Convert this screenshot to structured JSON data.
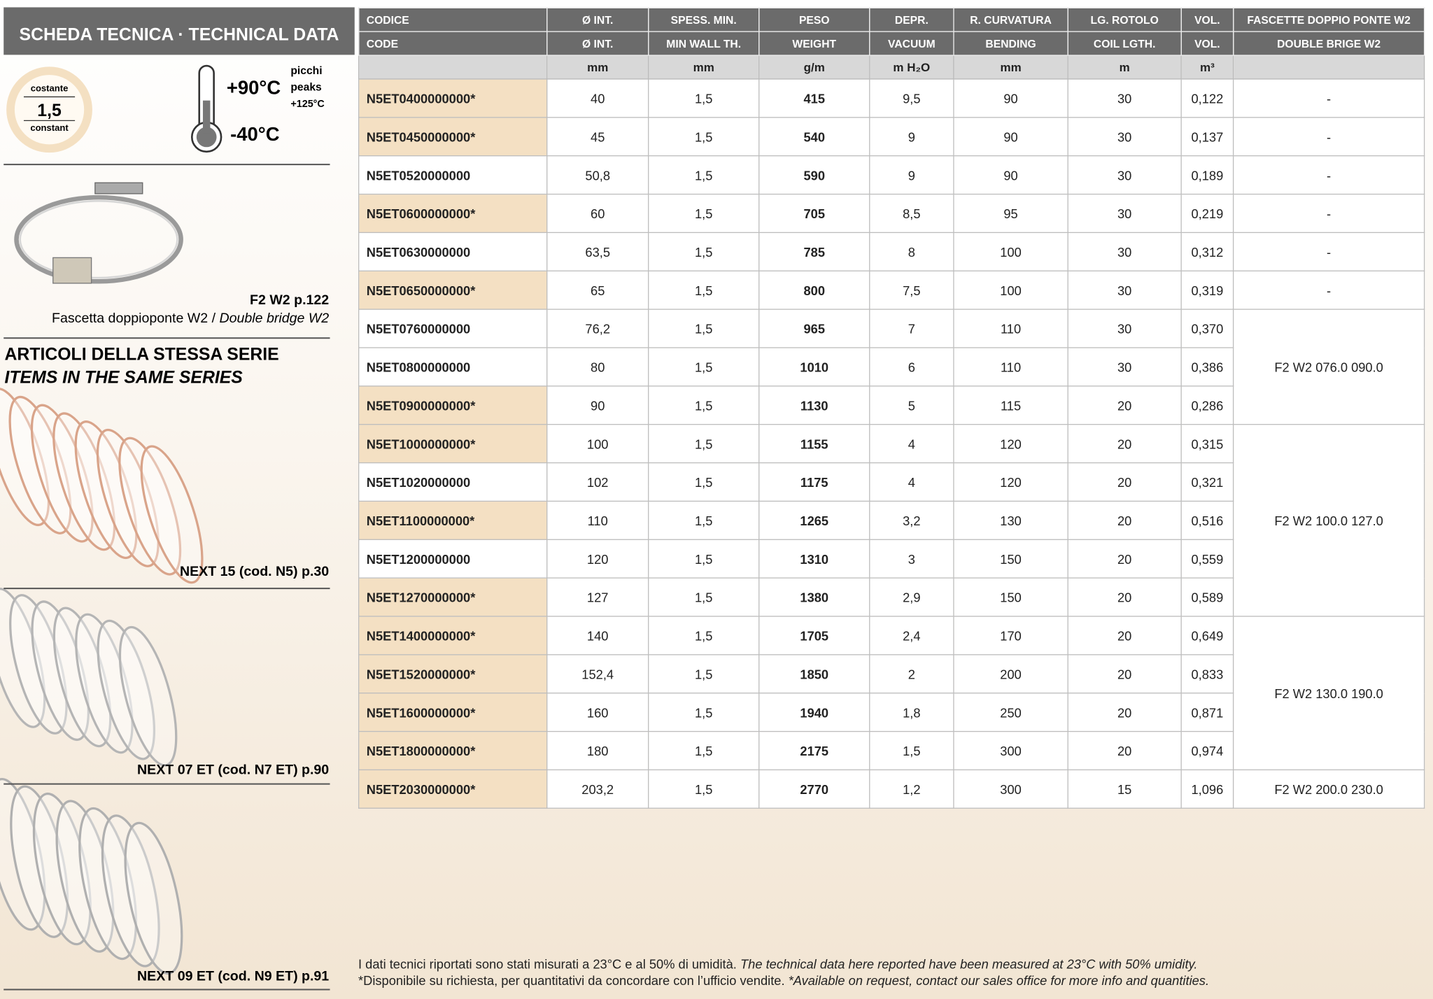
{
  "sidebar": {
    "title": "SCHEDA TECNICA · TECHNICAL DATA",
    "badge": {
      "top": "costante",
      "value": "1,5",
      "bottom": "constant"
    },
    "temperature": {
      "max": "+90°C",
      "min": "-40°C",
      "peaks_it": "picchi",
      "peaks_en": "peaks",
      "peaks_value": "+125°C"
    },
    "accessory": {
      "ref": "F2 W2 p.122",
      "caption_it": "Fascetta doppioponte W2 /",
      "caption_en": "Double bridge W2"
    },
    "series_title_it": "ARTICOLI DELLA STESSA SERIE",
    "series_title_en": "ITEMS IN THE SAME SERIES",
    "related": [
      "NEXT 15 (cod. N5) p.30",
      "NEXT 07 ET (cod. N7 ET) p.90",
      "NEXT 09 ET (cod. N9 ET) p.91"
    ]
  },
  "table": {
    "header_it": [
      "CODICE",
      "Ø INT.",
      "SPESS. MIN.",
      "PESO",
      "DEPR.",
      "R. CURVATURA",
      "LG. ROTOLO",
      "VOL.",
      "FASCETTE DOPPIO PONTE W2"
    ],
    "header_en": [
      "CODE",
      "Ø INT.",
      "MIN WALL TH.",
      "WEIGHT",
      "VACUUM",
      "BENDING",
      "COIL LGTH.",
      "VOL.",
      "DOUBLE BRIGE W2"
    ],
    "units": [
      null,
      "mm",
      "mm",
      "g/m",
      "m H₂O",
      "mm",
      "m",
      "m³",
      null
    ],
    "rows": [
      [
        "N5ET0400000000*",
        "40",
        "1,5",
        "415",
        "9,5",
        "90",
        "30",
        "0,122",
        "-"
      ],
      [
        "N5ET0450000000*",
        "45",
        "1,5",
        "540",
        "9",
        "90",
        "30",
        "0,137",
        "-"
      ],
      [
        "N5ET0520000000",
        "50,8",
        "1,5",
        "590",
        "9",
        "90",
        "30",
        "0,189",
        "-"
      ],
      [
        "N5ET0600000000*",
        "60",
        "1,5",
        "705",
        "8,5",
        "95",
        "30",
        "0,219",
        "-"
      ],
      [
        "N5ET0630000000",
        "63,5",
        "1,5",
        "785",
        "8",
        "100",
        "30",
        "0,312",
        "-"
      ],
      [
        "N5ET0650000000*",
        "65",
        "1,5",
        "800",
        "7,5",
        "100",
        "30",
        "0,319",
        "-"
      ],
      [
        "N5ET0760000000",
        "76,2",
        "1,5",
        "965",
        "7",
        "110",
        "30",
        "0,370",
        "F2 W2 076.0 090.0"
      ],
      [
        "N5ET0800000000",
        "80",
        "1,5",
        "1010",
        "6",
        "110",
        "30",
        "0,386",
        null
      ],
      [
        "N5ET0900000000*",
        "90",
        "1,5",
        "1130",
        "5",
        "115",
        "20",
        "0,286",
        null
      ],
      [
        "N5ET1000000000*",
        "100",
        "1,5",
        "1155",
        "4",
        "120",
        "20",
        "0,315",
        "F2 W2 100.0 127.0"
      ],
      [
        "N5ET1020000000",
        "102",
        "1,5",
        "1175",
        "4",
        "120",
        "20",
        "0,321",
        null
      ],
      [
        "N5ET1100000000*",
        "110",
        "1,5",
        "1265",
        "3,2",
        "130",
        "20",
        "0,516",
        null
      ],
      [
        "N5ET1200000000",
        "120",
        "1,5",
        "1310",
        "3",
        "150",
        "20",
        "0,559",
        null
      ],
      [
        "N5ET1270000000*",
        "127",
        "1,5",
        "1380",
        "2,9",
        "150",
        "20",
        "0,589",
        null
      ],
      [
        "N5ET1400000000*",
        "140",
        "1,5",
        "1705",
        "2,4",
        "170",
        "20",
        "0,649",
        "F2 W2 130.0 190.0"
      ],
      [
        "N5ET1520000000*",
        "152,4",
        "1,5",
        "1850",
        "2",
        "200",
        "20",
        "0,833",
        null
      ],
      [
        "N5ET1600000000*",
        "160",
        "1,5",
        "1940",
        "1,8",
        "250",
        "20",
        "0,871",
        null
      ],
      [
        "N5ET1800000000*",
        "180",
        "1,5",
        "2175",
        "1,5",
        "300",
        "20",
        "0,974",
        null
      ],
      [
        "N5ET2030000000*",
        "203,2",
        "1,5",
        "2770",
        "1,2",
        "300",
        "15",
        "1,096",
        "F2 W2 200.0 230.0"
      ]
    ]
  },
  "notes": [
    {
      "it": "I dati tecnici riportati sono stati misurati a 23°C e al 50% di umidità.",
      "en": "The technical data here reported have been measured at 23°C with 50% umidity."
    },
    {
      "it": "*Disponibile su richiesta, per quantitativi da concordare con l’ufficio vendite.",
      "en": "*Available on request, contact our sales office for more info and quantities."
    }
  ]
}
